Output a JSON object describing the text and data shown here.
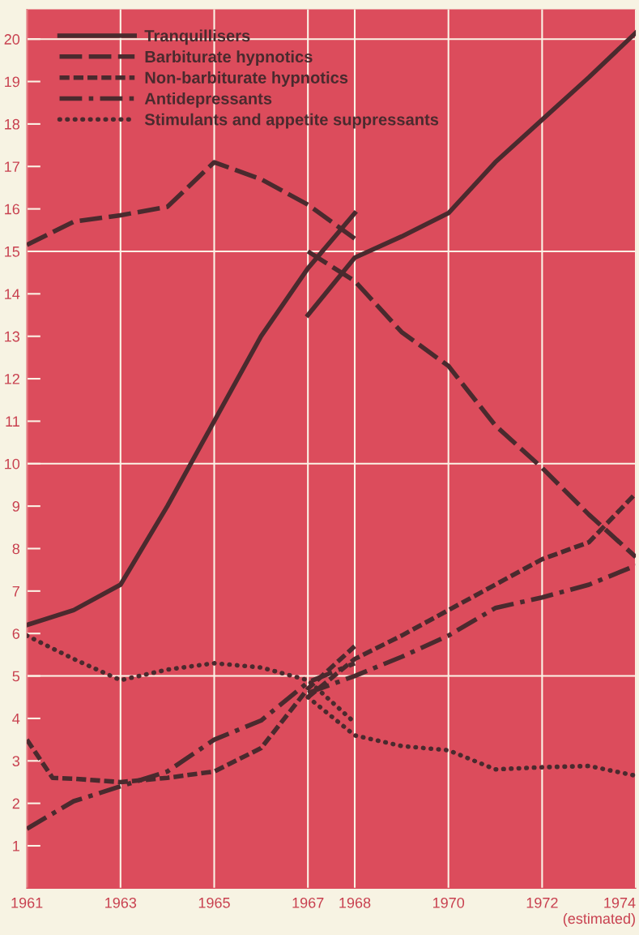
{
  "chart_data": {
    "type": "line",
    "xlim": [
      1961,
      1974
    ],
    "ylim": [
      0,
      20.7
    ],
    "xticks": [
      1961,
      1963,
      1965,
      1967,
      1968,
      1970,
      1972,
      {
        "value": 1974,
        "label": "1974\n(estimated)"
      }
    ],
    "yticks": [
      1,
      2,
      3,
      4,
      5,
      6,
      7,
      8,
      9,
      10,
      11,
      12,
      13,
      14,
      15,
      16,
      17,
      18,
      19,
      20
    ],
    "grid": "x",
    "legend": "top left",
    "ref_lines": [
      {
        "axis": "y",
        "value": 5,
        "color": "#fbf3e6"
      },
      {
        "axis": "y",
        "value": 10,
        "color": "#fbf3e6"
      },
      {
        "axis": "y",
        "value": 15,
        "color": "#fbf3e6"
      },
      {
        "axis": "y",
        "value": 20,
        "color": "#fbf3e6"
      }
    ],
    "series": [
      {
        "name": "Tranquillisers",
        "color": "#4a2a2e",
        "line_style": "solid",
        "x": [
          1961,
          1962,
          1963,
          1964,
          1965,
          1966,
          1967,
          1968
        ],
        "values": [
          6.2,
          6.55,
          7.15,
          9.0,
          11.0,
          13.0,
          14.6,
          15.9
        ]
      },
      {
        "name": "Barbiturate hypnotics",
        "color": "#4a2a2e",
        "line_style": "longdash",
        "x": [
          1961,
          1962,
          1963,
          1964,
          1965,
          1966,
          1967,
          1968
        ],
        "values": [
          15.15,
          15.7,
          15.85,
          16.05,
          17.1,
          16.7,
          16.1,
          15.3
        ]
      },
      {
        "name": "Non-barbiturate hypnotics",
        "color": "#4a2a2e",
        "line_style": "dashed",
        "x": [
          1961,
          1961.55,
          1962,
          1963,
          1964,
          1965,
          1966,
          1967,
          1968
        ],
        "values": [
          3.5,
          2.6,
          2.58,
          2.5,
          2.6,
          2.75,
          3.3,
          4.7,
          5.7
        ]
      },
      {
        "name": "Antidepressants",
        "color": "#4a2a2e",
        "line_style": "dashdot",
        "x": [
          1961,
          1962,
          1963,
          1964,
          1965,
          1966,
          1967,
          1968
        ],
        "values": [
          1.4,
          2.05,
          2.4,
          2.75,
          3.5,
          3.95,
          4.85,
          5.3
        ]
      },
      {
        "name": "Stimulants and appetite suppressants",
        "color": "#4a2a2e",
        "line_style": "dotted",
        "x": [
          1961,
          1962,
          1963,
          1964,
          1965,
          1966,
          1967,
          1968
        ],
        "values": [
          5.95,
          5.4,
          4.9,
          5.15,
          5.3,
          5.2,
          4.9,
          3.9
        ]
      },
      {
        "color": "#4a2a2e",
        "line_style": "solid",
        "x": [
          1967,
          1968,
          1969,
          1970,
          1971,
          1972,
          1973,
          1974
        ],
        "values": [
          13.5,
          14.85,
          15.35,
          15.9,
          17.1,
          18.1,
          19.1,
          20.15
        ]
      },
      {
        "color": "#4a2a2e",
        "line_style": "longdash",
        "x": [
          1967,
          1968,
          1969,
          1970,
          1971,
          1972,
          1973,
          1974
        ],
        "values": [
          15.0,
          14.3,
          13.1,
          12.3,
          10.9,
          9.9,
          8.8,
          7.8
        ]
      },
      {
        "color": "#4a2a2e",
        "line_style": "dashed",
        "x": [
          1967,
          1968,
          1969,
          1970,
          1971,
          1972,
          1973,
          1974
        ],
        "values": [
          4.5,
          5.4,
          5.95,
          6.55,
          7.15,
          7.75,
          8.15,
          9.3
        ]
      },
      {
        "color": "#4a2a2e",
        "line_style": "dashdot",
        "x": [
          1967,
          1968,
          1969,
          1970,
          1971,
          1972,
          1973,
          1974
        ],
        "values": [
          4.6,
          5.0,
          5.45,
          5.95,
          6.6,
          6.85,
          7.15,
          7.6
        ]
      },
      {
        "color": "#4a2a2e",
        "line_style": "dotted",
        "x": [
          1967,
          1968,
          1969,
          1970,
          1971,
          1972,
          1973,
          1974
        ],
        "values": [
          4.5,
          3.6,
          3.35,
          3.25,
          2.8,
          2.85,
          2.88,
          2.65
        ]
      }
    ]
  }
}
